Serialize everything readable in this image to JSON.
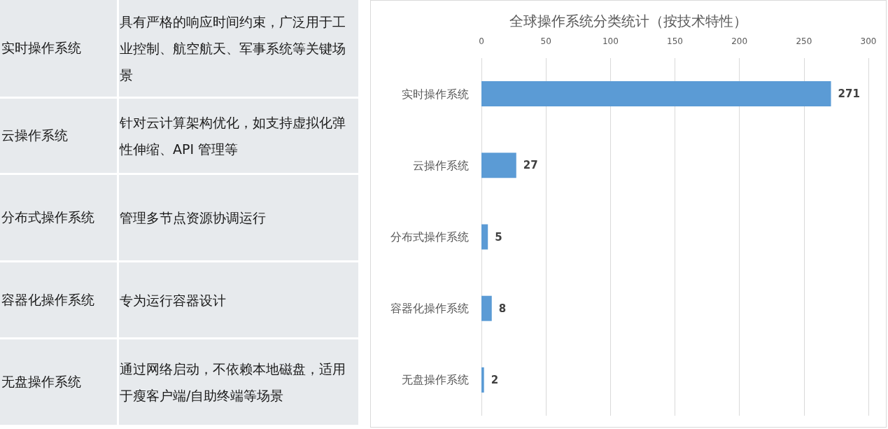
{
  "chart_data": [
    {
      "type": "other",
      "categories": [
        "实时操作系统",
        "云操作系统",
        "分布式操作系统",
        "容器化操作系统",
        "无盘操作系统"
      ],
      "annotations": [
        "具有严格的响应时间约束，广泛用于工业控制、航空航天、军事系统等关键场景",
        "针对云计算架构优化，如支持虚拟化弹性伸缩、API 管理等",
        "管理多节点资源协调运行",
        "专为运行容器设计",
        "通过网络启动，不依赖本地磁盘，适用于瘦客户端/自助终端等场景"
      ]
    },
    {
      "type": "bar",
      "orientation": "horizontal",
      "title": "全球操作系统分类统计（按技术特性）",
      "categories": [
        "实时操作系统",
        "云操作系统",
        "分布式操作系统",
        "容器化操作系统",
        "无盘操作系统"
      ],
      "values": [
        271,
        27,
        5,
        8,
        2
      ],
      "color": "#5b9bd5",
      "xlim": [
        0,
        300
      ],
      "xticks": [
        0,
        50,
        100,
        150,
        200,
        250,
        300
      ],
      "grid": "x",
      "data_labels": true
    }
  ]
}
